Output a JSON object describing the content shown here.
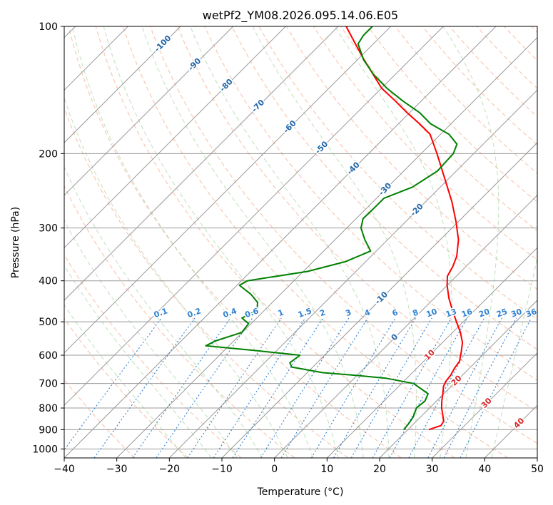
{
  "chart_data": {
    "type": "line",
    "subtype": "skew-T log-P",
    "title": "wetPf2_YM08.2026.095.14.06.E05",
    "xlabel": "Temperature (°C)",
    "ylabel": "Pressure (hPa)",
    "xlim": [
      -40,
      50
    ],
    "ylim": [
      1050,
      100
    ],
    "skew_deg_C_per_decade_hint": "isotherms rise to the right",
    "x_ticks": [
      -40,
      -30,
      -20,
      -10,
      0,
      10,
      20,
      30,
      40,
      50
    ],
    "y_ticks": [
      100,
      200,
      300,
      400,
      500,
      600,
      700,
      800,
      900,
      1000
    ],
    "isotherm_labels": [
      -100,
      -90,
      -80,
      -70,
      -60,
      -50,
      -40,
      -30,
      -20,
      -10,
      0,
      10,
      20,
      30,
      40
    ],
    "mixing_ratio_labels": [
      "0.1",
      "0.2",
      "0.4",
      "0.6",
      "1",
      "1.5",
      "2",
      "3",
      "4",
      "6",
      "8",
      "10",
      "13",
      "16",
      "20",
      "25",
      "30",
      "36"
    ],
    "mixing_ratio_values": [
      0.1,
      0.2,
      0.4,
      0.6,
      1,
      1.5,
      2,
      3,
      4,
      6,
      8,
      10,
      13,
      16,
      20,
      25,
      30,
      36
    ],
    "series": [
      {
        "name": "temperature",
        "color": "#ff0000",
        "points": [
          {
            "p": 900,
            "t": 24.0
          },
          {
            "p": 880,
            "t": 25.5
          },
          {
            "p": 860,
            "t": 25.2
          },
          {
            "p": 830,
            "t": 23.8
          },
          {
            "p": 800,
            "t": 22.3
          },
          {
            "p": 770,
            "t": 21.0
          },
          {
            "p": 740,
            "t": 19.8
          },
          {
            "p": 710,
            "t": 18.5
          },
          {
            "p": 690,
            "t": 18.0
          },
          {
            "p": 670,
            "t": 17.8
          },
          {
            "p": 645,
            "t": 17.2
          },
          {
            "p": 620,
            "t": 16.8
          },
          {
            "p": 590,
            "t": 15.4
          },
          {
            "p": 560,
            "t": 13.8
          },
          {
            "p": 530,
            "t": 11.5
          },
          {
            "p": 500,
            "t": 8.7
          },
          {
            "p": 470,
            "t": 5.8
          },
          {
            "p": 440,
            "t": 2.8
          },
          {
            "p": 410,
            "t": 0.0
          },
          {
            "p": 390,
            "t": -1.7
          },
          {
            "p": 370,
            "t": -2.5
          },
          {
            "p": 350,
            "t": -3.7
          },
          {
            "p": 320,
            "t": -6.5
          },
          {
            "p": 290,
            "t": -10.4
          },
          {
            "p": 260,
            "t": -15.0
          },
          {
            "p": 230,
            "t": -20.6
          },
          {
            "p": 200,
            "t": -27.0
          },
          {
            "p": 180,
            "t": -32.0
          },
          {
            "p": 170,
            "t": -36.0
          },
          {
            "p": 160,
            "t": -40.5
          },
          {
            "p": 150,
            "t": -45.0
          },
          {
            "p": 140,
            "t": -50.0
          },
          {
            "p": 120,
            "t": -58.7
          },
          {
            "p": 110,
            "t": -63.4
          },
          {
            "p": 100,
            "t": -68.5
          }
        ]
      },
      {
        "name": "dewpoint",
        "color": "#008000",
        "points": [
          {
            "p": 900,
            "t": 19.2
          },
          {
            "p": 870,
            "t": 19.0
          },
          {
            "p": 840,
            "t": 18.6
          },
          {
            "p": 800,
            "t": 17.5
          },
          {
            "p": 770,
            "t": 17.8
          },
          {
            "p": 740,
            "t": 17.0
          },
          {
            "p": 700,
            "t": 12.3
          },
          {
            "p": 680,
            "t": 6.0
          },
          {
            "p": 670,
            "t": 0.0
          },
          {
            "p": 660,
            "t": -7.0
          },
          {
            "p": 640,
            "t": -14.0
          },
          {
            "p": 625,
            "t": -15.2
          },
          {
            "p": 600,
            "t": -14.7
          },
          {
            "p": 585,
            "t": -24.0
          },
          {
            "p": 570,
            "t": -34.4
          },
          {
            "p": 555,
            "t": -33.5
          },
          {
            "p": 530,
            "t": -30.1
          },
          {
            "p": 505,
            "t": -30.5
          },
          {
            "p": 490,
            "t": -32.8
          },
          {
            "p": 470,
            "t": -31.4
          },
          {
            "p": 450,
            "t": -32.8
          },
          {
            "p": 430,
            "t": -35.7
          },
          {
            "p": 410,
            "t": -39.5
          },
          {
            "p": 400,
            "t": -38.9
          },
          {
            "p": 380,
            "t": -29.2
          },
          {
            "p": 360,
            "t": -23.8
          },
          {
            "p": 340,
            "t": -21.1
          },
          {
            "p": 320,
            "t": -24.3
          },
          {
            "p": 300,
            "t": -27.3
          },
          {
            "p": 285,
            "t": -28.7
          },
          {
            "p": 270,
            "t": -28.6
          },
          {
            "p": 255,
            "t": -28.6
          },
          {
            "p": 240,
            "t": -25.3
          },
          {
            "p": 220,
            "t": -23.6
          },
          {
            "p": 200,
            "t": -23.9
          },
          {
            "p": 190,
            "t": -25.0
          },
          {
            "p": 180,
            "t": -28.4
          },
          {
            "p": 170,
            "t": -33.9
          },
          {
            "p": 160,
            "t": -38.1
          },
          {
            "p": 150,
            "t": -43.6
          },
          {
            "p": 140,
            "t": -49.0
          },
          {
            "p": 130,
            "t": -54.1
          },
          {
            "p": 120,
            "t": -58.8
          },
          {
            "p": 110,
            "t": -62.9
          },
          {
            "p": 105,
            "t": -63.5
          },
          {
            "p": 100,
            "t": -63.5
          }
        ]
      }
    ],
    "background_lines": {
      "isotherm_color": "#999999",
      "isobar_color": "#999999",
      "dry_adiabat_color": "#f4a582",
      "moist_adiabat_color": "#a6d49f",
      "mixing_ratio_color": "#3182d0",
      "isotherm_label_color": "#2066a8",
      "warm_isotherm_label_color": "#d62728"
    }
  }
}
